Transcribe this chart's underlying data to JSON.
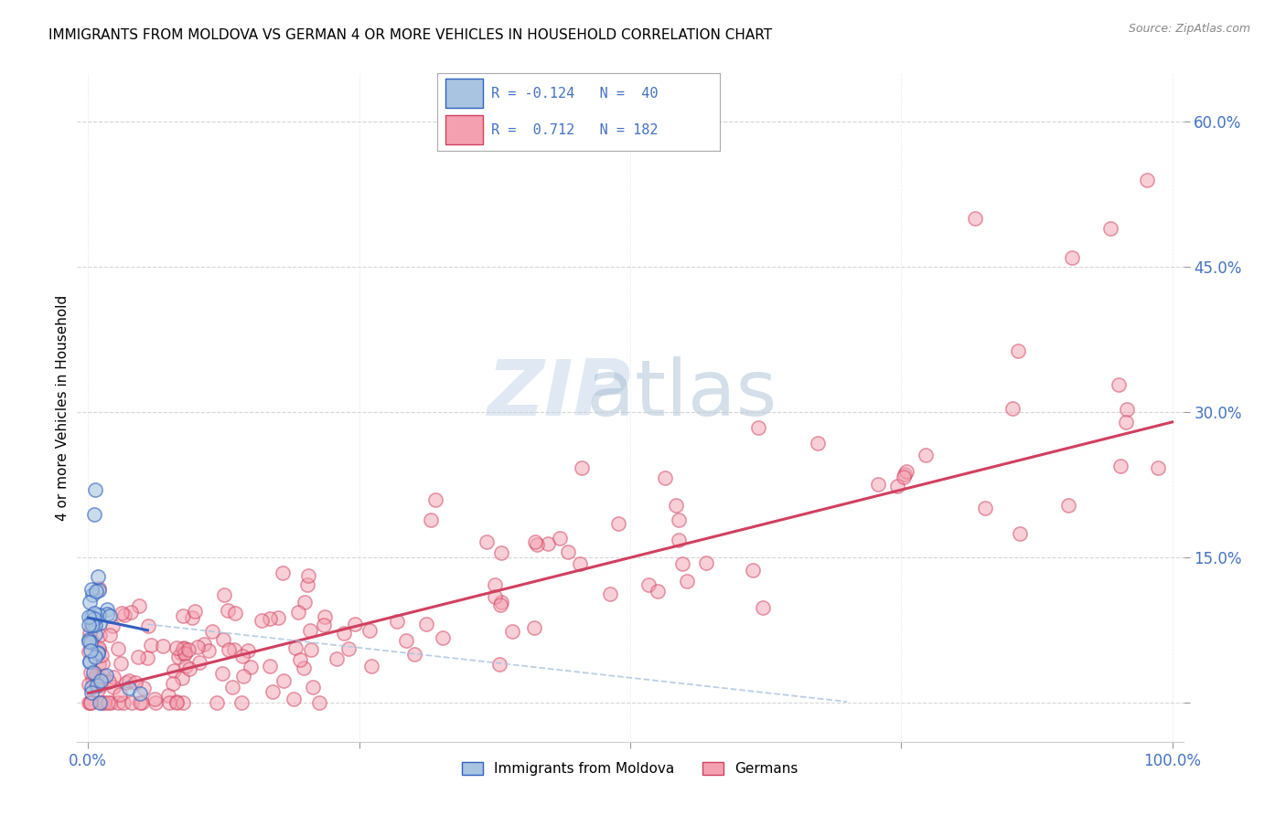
{
  "title": "IMMIGRANTS FROM MOLDOVA VS GERMAN 4 OR MORE VEHICLES IN HOUSEHOLD CORRELATION CHART",
  "source": "Source: ZipAtlas.com",
  "ylabel": "4 or more Vehicles in Household",
  "xlim": [
    -0.01,
    1.01
  ],
  "ylim": [
    -0.04,
    0.65
  ],
  "scatter_color_blue": "#a8c4e0",
  "scatter_color_pink": "#f4a0b0",
  "line_color_blue": "#3060c0",
  "line_color_pink": "#d04060",
  "bg_color": "#ffffff",
  "grid_color": "#cccccc",
  "tick_color": "#4472c4",
  "title_fontsize": 11,
  "watermark_zip": "ZIP",
  "watermark_atlas": "atlas"
}
